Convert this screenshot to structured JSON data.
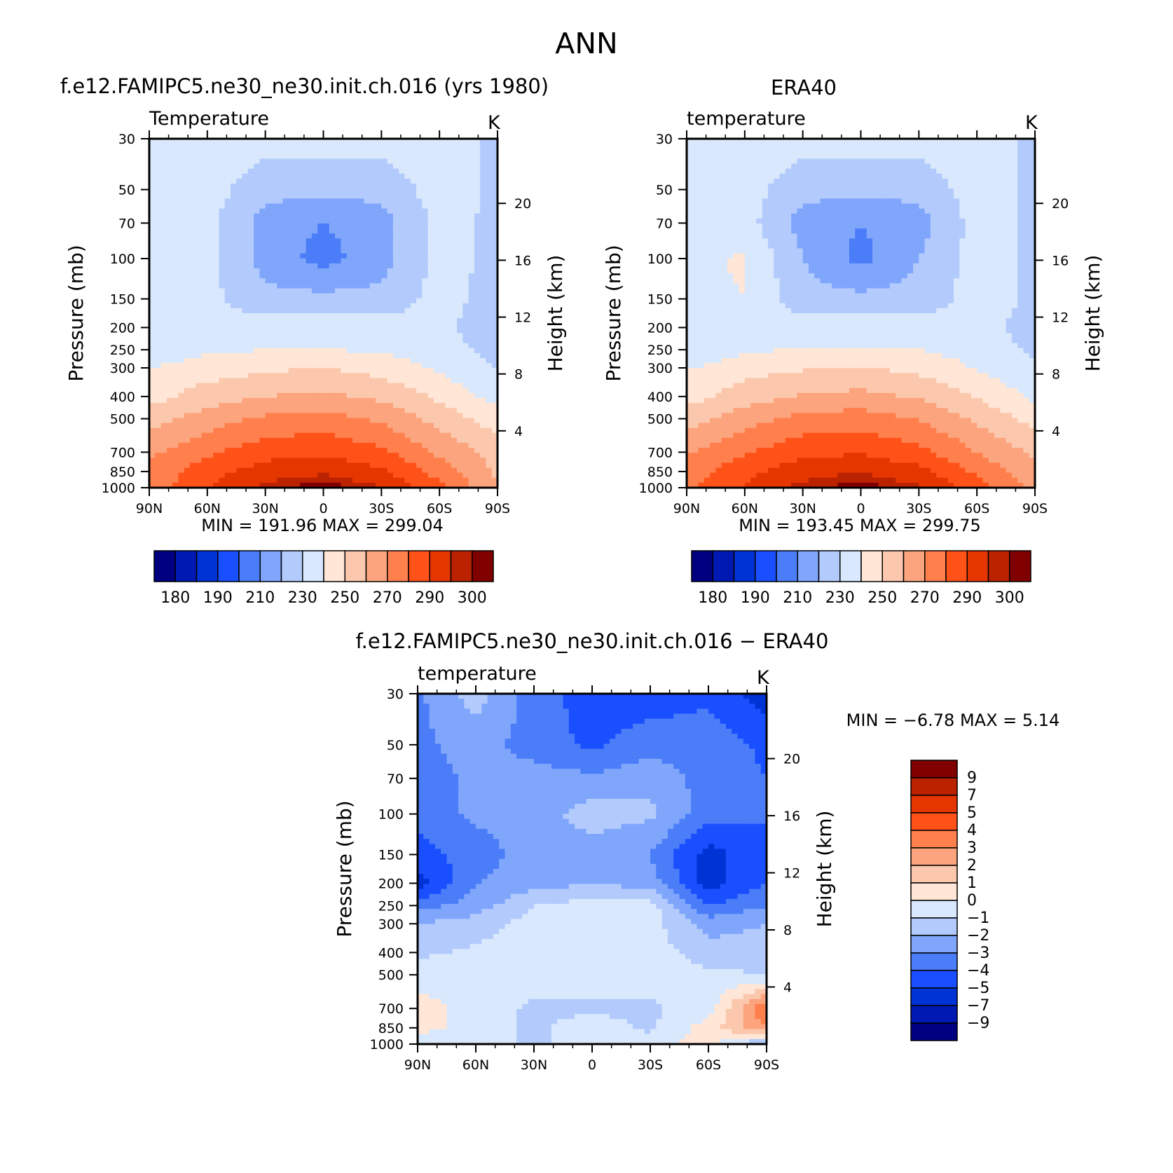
{
  "figure": {
    "title": "ANN"
  },
  "panels": [
    {
      "title": "f.e12.FAMIPC5.ne30_ne30.init.ch.016 (yrs 1980)",
      "field": "Temperature",
      "units": "K",
      "ylabel": "Pressure (mb)",
      "ylabel_right": "Height (km)",
      "stats": "MIN = 191.96   MAX = 299.04"
    },
    {
      "title": "ERA40",
      "field": "temperature",
      "units": "K",
      "ylabel": "Pressure (mb)",
      "ylabel_right": "Height (km)",
      "stats": "MIN = 193.45   MAX = 299.75"
    },
    {
      "title": "f.e12.FAMIPC5.ne30_ne30.init.ch.016 − ERA40",
      "field": "temperature",
      "units": "K",
      "ylabel": "Pressure (mb)",
      "ylabel_right": "Height (km)",
      "stats": "MIN =    −6.78   MAX =     5.14"
    }
  ],
  "colors": {
    "abs_scale": [
      "#000080",
      "#0019b3",
      "#0033d6",
      "#1a4fff",
      "#4a7df7",
      "#80a6fc",
      "#b3cbfc",
      "#d9e8fc",
      "#ffe6d6",
      "#fcc8ad",
      "#fca47d",
      "#ff7f4d",
      "#ff5219",
      "#e63600",
      "#bb2200",
      "#800000"
    ],
    "diff_scale": [
      "#800000",
      "#bb2200",
      "#e63600",
      "#ff5219",
      "#ff7f4d",
      "#fca47d",
      "#fcc8ad",
      "#ffe6d6",
      "#d9e8fc",
      "#b3cbfc",
      "#80a6fc",
      "#4a7df7",
      "#1a4fff",
      "#0033d6",
      "#0019b3",
      "#000080"
    ]
  },
  "chart_data": [
    {
      "type": "heatmap",
      "title": "f.e12.FAMIPC5.ne30_ne30.init.ch.016 (yrs 1980)",
      "subtitle": "Temperature",
      "units": "K",
      "xlabel": "",
      "ylabel": "Pressure (mb)",
      "ylabel_right": "Height (km)",
      "x_ticks": [
        "90N",
        "60N",
        "30N",
        "0",
        "30S",
        "60S",
        "90S"
      ],
      "y_ticks": [
        30,
        50,
        70,
        100,
        150,
        200,
        250,
        300,
        400,
        500,
        700,
        850,
        1000
      ],
      "y_ticks_right": [
        20,
        16,
        12,
        8,
        4
      ],
      "y_scale": "log",
      "ylim": [
        1000,
        30
      ],
      "colorbar_labels": [
        "180",
        "190",
        "210",
        "230",
        "250",
        "270",
        "290",
        "300"
      ],
      "colorbar_levels": [
        175,
        180,
        185,
        190,
        200,
        210,
        220,
        230,
        240,
        250,
        260,
        270,
        280,
        290,
        295,
        300
      ],
      "min": 191.96,
      "max": 299.04,
      "latitudes": [
        90,
        60,
        30,
        0,
        -30,
        -60,
        -90
      ],
      "pressures": [
        30,
        50,
        70,
        100,
        150,
        200,
        250,
        300,
        400,
        500,
        700,
        850,
        1000
      ],
      "values": [
        [
          225,
          225,
          225,
          225,
          225,
          225,
          218
        ],
        [
          225,
          225,
          213,
          213,
          213,
          225,
          218
        ],
        [
          225,
          223,
          206,
          200,
          206,
          223,
          218
        ],
        [
          225,
          223,
          206,
          196,
          206,
          223,
          218
        ],
        [
          225,
          223,
          213,
          213,
          213,
          224,
          216
        ],
        [
          221,
          224,
          225,
          225,
          225,
          222,
          214
        ],
        [
          223,
          228,
          230,
          230,
          229,
          225,
          216
        ],
        [
          230,
          235,
          238,
          240,
          236,
          228,
          220
        ],
        [
          236,
          245,
          250,
          252,
          248,
          238,
          226
        ],
        [
          245,
          255,
          262,
          264,
          258,
          246,
          235
        ],
        [
          258,
          268,
          276,
          278,
          272,
          258,
          246
        ],
        [
          262,
          276,
          285,
          288,
          282,
          266,
          248
        ],
        [
          264,
          280,
          292,
          299,
          290,
          272,
          250
        ]
      ]
    },
    {
      "type": "heatmap",
      "title": "ERA40",
      "subtitle": "temperature",
      "units": "K",
      "xlabel": "",
      "ylabel": "Pressure (mb)",
      "ylabel_right": "Height (km)",
      "x_ticks": [
        "90N",
        "60N",
        "30N",
        "0",
        "30S",
        "60S",
        "90S"
      ],
      "y_ticks": [
        30,
        50,
        70,
        100,
        150,
        200,
        250,
        300,
        400,
        500,
        700,
        850,
        1000
      ],
      "y_ticks_right": [
        20,
        16,
        12,
        8,
        4
      ],
      "y_scale": "log",
      "ylim": [
        1000,
        30
      ],
      "colorbar_labels": [
        "180",
        "190",
        "210",
        "230",
        "250",
        "270",
        "290",
        "300"
      ],
      "colorbar_levels": [
        175,
        180,
        185,
        190,
        200,
        210,
        220,
        230,
        240,
        250,
        260,
        270,
        280,
        290,
        295,
        300
      ],
      "min": 193.45,
      "max": 299.75,
      "latitudes": [
        90,
        60,
        30,
        0,
        -30,
        -60,
        -90
      ],
      "pressures": [
        30,
        50,
        70,
        100,
        150,
        200,
        250,
        300,
        400,
        500,
        700,
        850,
        1000
      ],
      "values": [
        [
          225,
          225,
          225,
          225,
          225,
          226,
          218
        ],
        [
          225,
          225,
          213,
          213,
          213,
          225,
          218
        ],
        [
          226,
          224,
          206,
          200,
          206,
          224,
          218
        ],
        [
          228,
          231,
          210,
          197,
          210,
          224,
          218
        ],
        [
          228,
          230,
          213,
          213,
          213,
          225,
          218
        ],
        [
          226,
          229,
          225,
          225,
          225,
          224,
          216
        ],
        [
          223,
          228,
          231,
          231,
          230,
          226,
          218
        ],
        [
          229,
          236,
          239,
          241,
          237,
          229,
          221
        ],
        [
          236,
          245,
          251,
          253,
          249,
          239,
          228
        ],
        [
          245,
          256,
          263,
          265,
          259,
          248,
          236
        ],
        [
          259,
          269,
          277,
          279,
          273,
          260,
          248
        ],
        [
          265,
          277,
          286,
          289,
          283,
          268,
          252
        ],
        [
          268,
          281,
          293,
          299,
          291,
          275,
          256
        ]
      ]
    },
    {
      "type": "heatmap",
      "title": "f.e12.FAMIPC5.ne30_ne30.init.ch.016 − ERA40",
      "subtitle": "temperature",
      "units": "K",
      "xlabel": "",
      "ylabel": "Pressure (mb)",
      "ylabel_right": "Height (km)",
      "x_ticks": [
        "90N",
        "60N",
        "30N",
        "0",
        "30S",
        "60S",
        "90S"
      ],
      "y_ticks": [
        30,
        50,
        70,
        100,
        150,
        200,
        250,
        300,
        400,
        500,
        700,
        850,
        1000
      ],
      "y_ticks_right": [
        20,
        16,
        12,
        8,
        4
      ],
      "y_scale": "log",
      "ylim": [
        1000,
        30
      ],
      "colorbar_labels": [
        "9",
        "7",
        "5",
        "4",
        "3",
        "2",
        "1",
        "0",
        "−1",
        "−2",
        "−3",
        "−4",
        "−5",
        "−7",
        "−9"
      ],
      "colorbar_levels": [
        -9,
        -7,
        -5,
        -4,
        -3,
        -2,
        -1,
        0,
        1,
        2,
        3,
        4,
        5,
        7,
        9
      ],
      "min": -6.78,
      "max": 5.14,
      "latitudes": [
        90,
        60,
        30,
        0,
        -30,
        -60,
        -90
      ],
      "pressures": [
        30,
        50,
        70,
        100,
        150,
        200,
        250,
        300,
        400,
        500,
        700,
        850,
        1000
      ],
      "values": [
        [
          -3.2,
          -1.5,
          -3.5,
          -4.5,
          -4.5,
          -4.2,
          -5.6
        ],
        [
          -3.3,
          -2.5,
          -3.5,
          -4.2,
          -3.5,
          -3.5,
          -4.2
        ],
        [
          -3.5,
          -2.8,
          -2.5,
          -2.8,
          -2.2,
          -3.5,
          -4.0
        ],
        [
          -3.5,
          -2.8,
          -2.5,
          -1.5,
          -1.8,
          -3.5,
          -4.0
        ],
        [
          -4.5,
          -3.5,
          -2.5,
          -2.5,
          -3.0,
          -5.5,
          -4.0
        ],
        [
          -5.5,
          -3.0,
          -2.5,
          -2.0,
          -2.5,
          -5.5,
          -4.0
        ],
        [
          -3.5,
          -2.5,
          -1.0,
          -0.5,
          -0.5,
          -4.0,
          -3.0
        ],
        [
          -2.0,
          -1.5,
          -0.6,
          -0.5,
          -0.6,
          -2.5,
          -2.0
        ],
        [
          -1.2,
          -0.8,
          -0.5,
          -0.5,
          -0.5,
          -1.5,
          -1.5
        ],
        [
          -0.5,
          -0.5,
          -0.5,
          -0.5,
          -0.5,
          -0.8,
          -1.0
        ],
        [
          0.5,
          -0.5,
          -1.2,
          -1.2,
          -1.2,
          -0.5,
          4.0
        ],
        [
          0.5,
          -0.5,
          -1.2,
          -0.5,
          -1.2,
          0.5,
          3.0
        ],
        [
          -1.0,
          -0.5,
          -1.2,
          -0.5,
          -0.5,
          0.5,
          -2.5
        ]
      ]
    }
  ]
}
